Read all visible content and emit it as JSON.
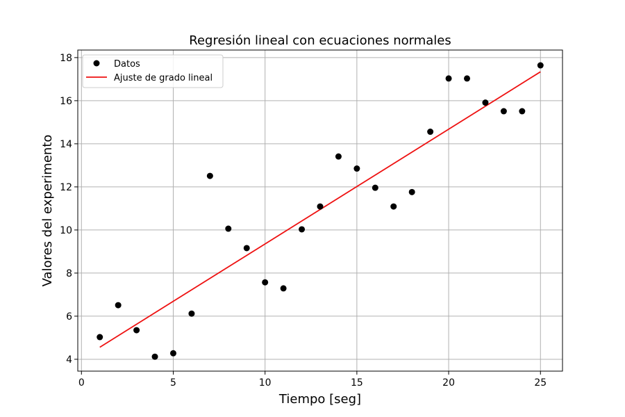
{
  "chart_data": {
    "type": "scatter",
    "title": "Regresión lineal con ecuaciones normales",
    "xlabel": "Tiempo [seg]",
    "ylabel": "Valores del experimento",
    "xlim": [
      -0.2,
      26.2
    ],
    "ylim": [
      3.45,
      18.35
    ],
    "xticks": [
      0,
      5,
      10,
      15,
      20,
      25
    ],
    "yticks": [
      4,
      6,
      8,
      10,
      12,
      14,
      16,
      18
    ],
    "grid": true,
    "legend_position": "top-left",
    "series": [
      {
        "name": "Datos",
        "kind": "scatter",
        "color": "#000000",
        "x": [
          1,
          2,
          3,
          4,
          5,
          6,
          7,
          8,
          9,
          10,
          11,
          12,
          13,
          14,
          15,
          16,
          17,
          18,
          19,
          20,
          21,
          22,
          23,
          24,
          25
        ],
        "y": [
          5.03,
          6.51,
          5.35,
          4.12,
          4.28,
          6.12,
          12.51,
          10.06,
          9.16,
          7.57,
          7.29,
          10.03,
          11.09,
          13.41,
          12.85,
          11.96,
          11.09,
          11.76,
          14.56,
          17.03,
          17.03,
          15.91,
          15.51,
          15.51,
          17.64
        ]
      },
      {
        "name": "Ajuste de grado lineal",
        "kind": "line",
        "color": "#ee1111",
        "x": [
          1,
          25
        ],
        "y": [
          4.56,
          17.34
        ]
      }
    ]
  }
}
